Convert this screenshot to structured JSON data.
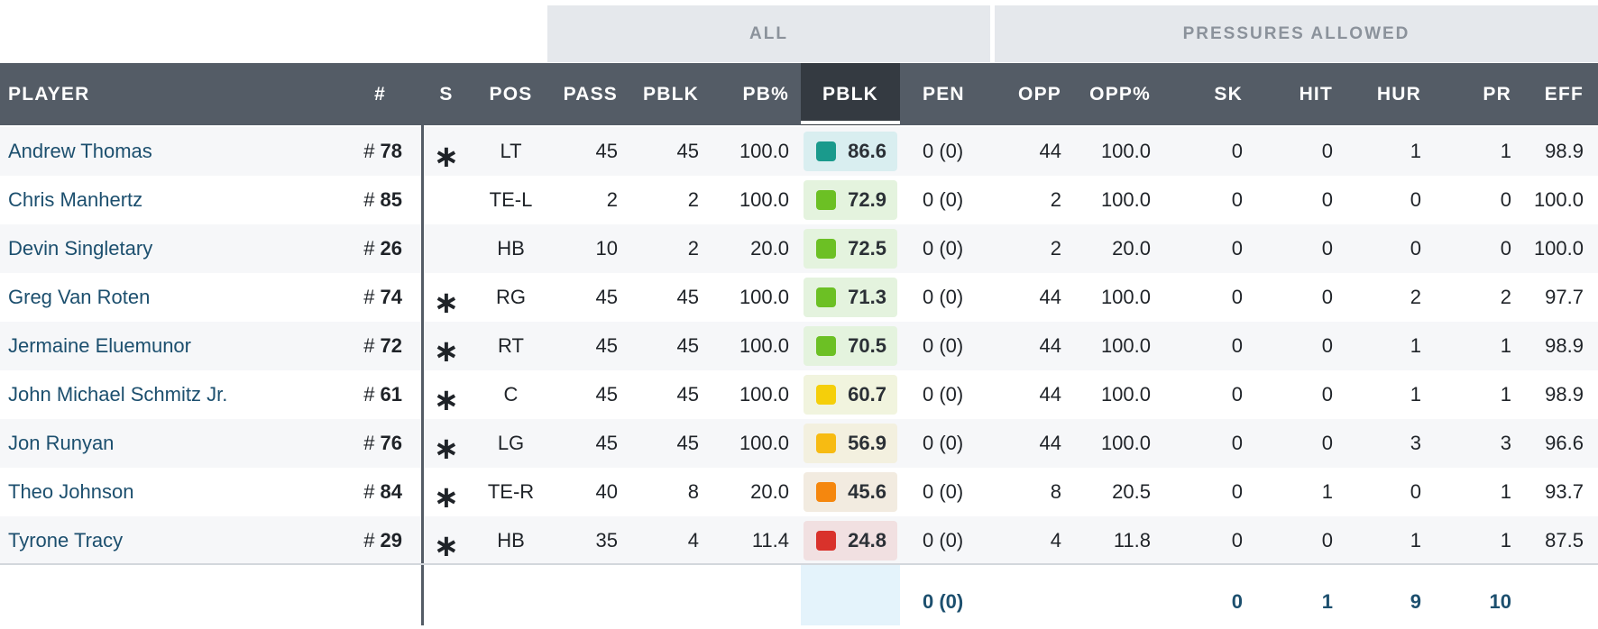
{
  "groups": {
    "all": "ALL",
    "pressures": "PRESSURES ALLOWED"
  },
  "columns": {
    "player": "PLAYER",
    "num": "#",
    "s": "S",
    "pos": "POS",
    "pass": "PASS",
    "pblk_snaps": "PBLK",
    "pb_pct": "PB%",
    "pblk_grade": "PBLK",
    "pen": "PEN",
    "opp": "OPP",
    "opp_pct": "OPP%",
    "sk": "SK",
    "hit": "HIT",
    "hur": "HUR",
    "pr": "PR",
    "eff": "EFF"
  },
  "rows": [
    {
      "name": "Andrew Thomas",
      "hash": "#",
      "num": "78",
      "s": "∗",
      "pos": "LT",
      "pass": "45",
      "pblk": "45",
      "pb_pct": "100.0",
      "grade": "86.6",
      "grade_color": "#1a9a8c",
      "grade_bg": "#d9eef0",
      "pen": "0 (0)",
      "opp": "44",
      "opp_pct": "100.0",
      "sk": "0",
      "hit": "0",
      "hur": "1",
      "pr": "1",
      "eff": "98.9"
    },
    {
      "name": "Chris Manhertz",
      "hash": "#",
      "num": "85",
      "s": "",
      "pos": "TE-L",
      "pass": "2",
      "pblk": "2",
      "pb_pct": "100.0",
      "grade": "72.9",
      "grade_color": "#6cc024",
      "grade_bg": "#e4f3de",
      "pen": "0 (0)",
      "opp": "2",
      "opp_pct": "100.0",
      "sk": "0",
      "hit": "0",
      "hur": "0",
      "pr": "0",
      "eff": "100.0"
    },
    {
      "name": "Devin Singletary",
      "hash": "#",
      "num": "26",
      "s": "",
      "pos": "HB",
      "pass": "10",
      "pblk": "2",
      "pb_pct": "20.0",
      "grade": "72.5",
      "grade_color": "#6cc024",
      "grade_bg": "#e4f3de",
      "pen": "0 (0)",
      "opp": "2",
      "opp_pct": "20.0",
      "sk": "0",
      "hit": "0",
      "hur": "0",
      "pr": "0",
      "eff": "100.0"
    },
    {
      "name": "Greg Van Roten",
      "hash": "#",
      "num": "74",
      "s": "∗",
      "pos": "RG",
      "pass": "45",
      "pblk": "45",
      "pb_pct": "100.0",
      "grade": "71.3",
      "grade_color": "#6cc024",
      "grade_bg": "#e4f3de",
      "pen": "0 (0)",
      "opp": "44",
      "opp_pct": "100.0",
      "sk": "0",
      "hit": "0",
      "hur": "2",
      "pr": "2",
      "eff": "97.7"
    },
    {
      "name": "Jermaine Eluemunor",
      "hash": "#",
      "num": "72",
      "s": "∗",
      "pos": "RT",
      "pass": "45",
      "pblk": "45",
      "pb_pct": "100.0",
      "grade": "70.5",
      "grade_color": "#6cc024",
      "grade_bg": "#e4f3de",
      "pen": "0 (0)",
      "opp": "44",
      "opp_pct": "100.0",
      "sk": "0",
      "hit": "0",
      "hur": "1",
      "pr": "1",
      "eff": "98.9"
    },
    {
      "name": "John Michael Schmitz Jr.",
      "hash": "#",
      "num": "61",
      "s": "∗",
      "pos": "C",
      "pass": "45",
      "pblk": "45",
      "pb_pct": "100.0",
      "grade": "60.7",
      "grade_color": "#f5cf0a",
      "grade_bg": "#f1f4de",
      "pen": "0 (0)",
      "opp": "44",
      "opp_pct": "100.0",
      "sk": "0",
      "hit": "0",
      "hur": "1",
      "pr": "1",
      "eff": "98.9"
    },
    {
      "name": "Jon Runyan",
      "hash": "#",
      "num": "76",
      "s": "∗",
      "pos": "LG",
      "pass": "45",
      "pblk": "45",
      "pb_pct": "100.0",
      "grade": "56.9",
      "grade_color": "#f7bb12",
      "grade_bg": "#f3f0df",
      "pen": "0 (0)",
      "opp": "44",
      "opp_pct": "100.0",
      "sk": "0",
      "hit": "0",
      "hur": "3",
      "pr": "3",
      "eff": "96.6"
    },
    {
      "name": "Theo Johnson",
      "hash": "#",
      "num": "84",
      "s": "∗",
      "pos": "TE-R",
      "pass": "40",
      "pblk": "8",
      "pb_pct": "20.0",
      "grade": "45.6",
      "grade_color": "#f5870e",
      "grade_bg": "#f2ebe0",
      "pen": "0 (0)",
      "opp": "8",
      "opp_pct": "20.5",
      "sk": "0",
      "hit": "1",
      "hur": "0",
      "pr": "1",
      "eff": "93.7"
    },
    {
      "name": "Tyrone Tracy",
      "hash": "#",
      "num": "29",
      "s": "∗",
      "pos": "HB",
      "pass": "35",
      "pblk": "4",
      "pb_pct": "11.4",
      "grade": "24.8",
      "grade_color": "#d9322b",
      "grade_bg": "#f1e0e1",
      "pen": "0 (0)",
      "opp": "4",
      "opp_pct": "11.8",
      "sk": "0",
      "hit": "0",
      "hur": "1",
      "pr": "1",
      "eff": "87.5"
    }
  ],
  "totals": {
    "pen": "0 (0)",
    "sk": "0",
    "hit": "1",
    "hur": "9",
    "pr": "10"
  }
}
